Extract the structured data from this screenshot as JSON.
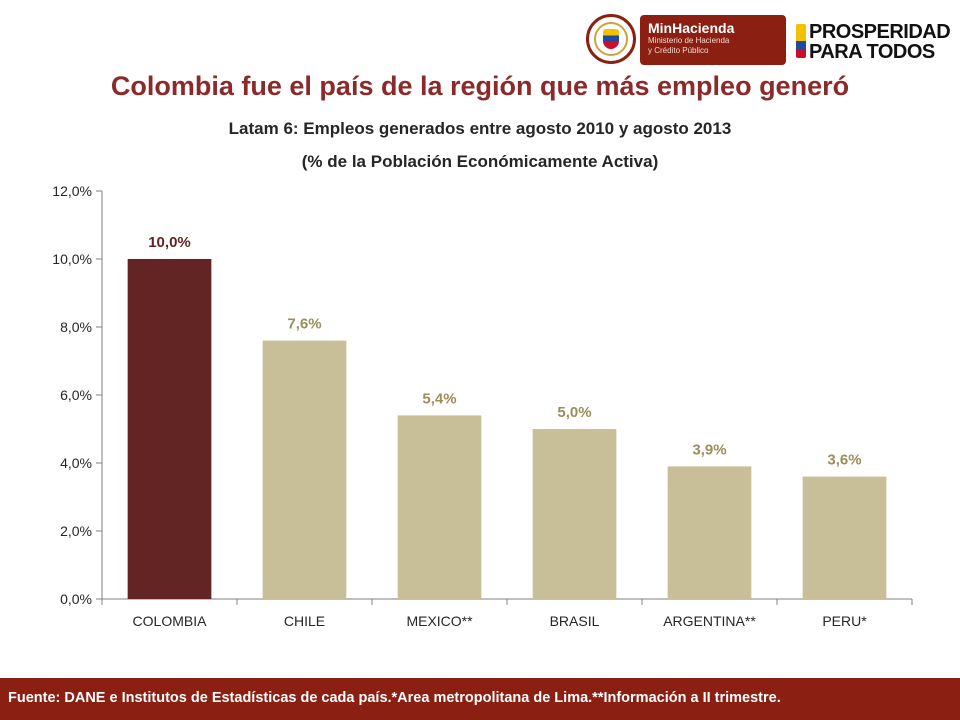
{
  "header": {
    "ministry_name": "MinHacienda",
    "ministry_subtitle_1": "Ministerio de Hacienda",
    "ministry_subtitle_2": "y Crédito Público",
    "slogan_line_1": "PROSPERIDAD",
    "slogan_line_2": "PARA TODOS"
  },
  "slide": {
    "title": "Colombia fue el país de la región que más empleo generó",
    "footer": "Fuente: DANE e Institutos de Estadísticas de cada país.*Area metropolitana de Lima.**Información a II trimestre."
  },
  "colors": {
    "highlight_bar": "#632523",
    "bar": "#c8bf98",
    "highlight_label": "#632523",
    "label": "#9c8e5a",
    "footer_bg": "#8b1f12",
    "title": "#8b2a2a"
  },
  "chart_data": {
    "type": "bar",
    "title": "Latam 6: Empleos generados entre agosto 2010 y agosto 2013",
    "subtitle": "(% de la Población Económicamente Activa)",
    "categories": [
      "COLOMBIA",
      "CHILE",
      "MEXICO**",
      "BRASIL",
      "ARGENTINA**",
      "PERU*"
    ],
    "values": [
      10.0,
      7.6,
      5.4,
      5.0,
      3.9,
      3.6
    ],
    "value_labels": [
      "10,0%",
      "7,6%",
      "5,4%",
      "5,0%",
      "3,9%",
      "3,6%"
    ],
    "highlight_index": 0,
    "ylim": [
      0,
      12
    ],
    "yticks": [
      0,
      2,
      4,
      6,
      8,
      10,
      12
    ],
    "ytick_labels": [
      "0,0%",
      "2,0%",
      "4,0%",
      "6,0%",
      "8,0%",
      "10,0%",
      "12,0%"
    ],
    "xlabel": "",
    "ylabel": "",
    "grid": false,
    "legend": "none"
  }
}
